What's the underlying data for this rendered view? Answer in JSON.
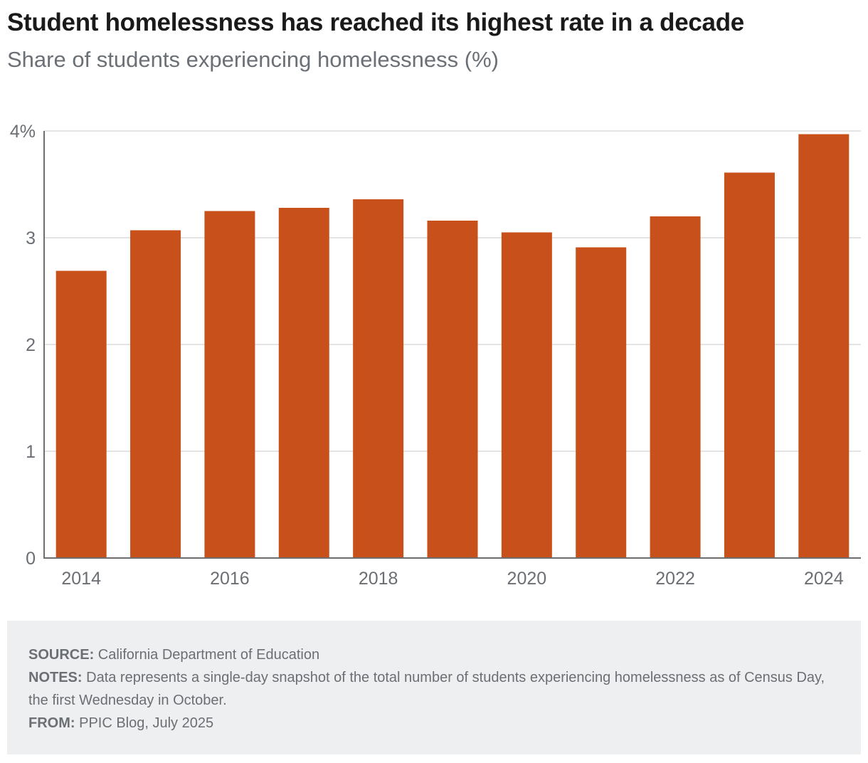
{
  "title": "Student homelessness has reached its highest rate in a decade",
  "subtitle": "Share of students experiencing homelessness (%)",
  "chart_data": {
    "type": "bar",
    "categories": [
      "2014",
      "2015",
      "2016",
      "2017",
      "2018",
      "2019",
      "2020",
      "2021",
      "2022",
      "2023",
      "2024"
    ],
    "values": [
      2.69,
      3.07,
      3.25,
      3.28,
      3.36,
      3.16,
      3.05,
      2.91,
      3.2,
      3.61,
      3.97
    ],
    "x_tick_labels": [
      "2014",
      "2016",
      "2018",
      "2020",
      "2022",
      "2024"
    ],
    "y_ticks": [
      0,
      1,
      2,
      3,
      4
    ],
    "y_tick_labels": [
      "0",
      "1",
      "2",
      "3",
      "4%"
    ],
    "ylim": [
      0,
      4
    ],
    "xlabel": "",
    "ylabel": "",
    "grid": true,
    "bar_color": "#c8501b"
  },
  "notes": {
    "source_label": "SOURCE:",
    "source_text": "California Department of Education",
    "notes_label": "NOTES:",
    "notes_text": "Data represents a single-day snapshot of the total number of students experiencing homelessness as of Census Day, the first Wednesday in October.",
    "from_label": "FROM:",
    "from_text": "PPIC Blog, July 2025"
  }
}
